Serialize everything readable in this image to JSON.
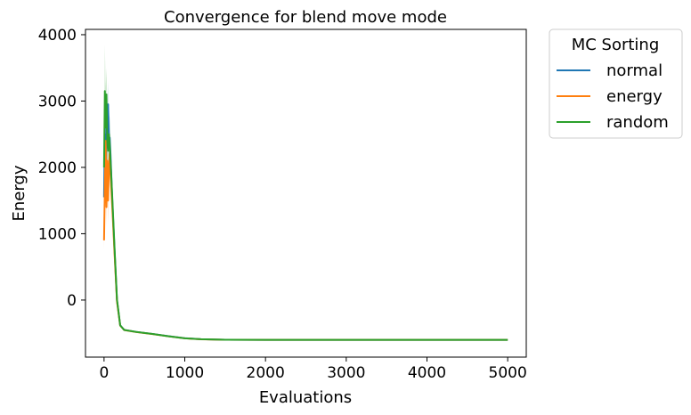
{
  "chart_data": {
    "type": "line",
    "title": "Convergence for blend move mode",
    "xlabel": "Evaluations",
    "ylabel": "Energy",
    "xlim": [
      -230,
      5230
    ],
    "ylim": [
      -860,
      4080
    ],
    "xticks": [
      0,
      1000,
      2000,
      3000,
      4000,
      5000
    ],
    "yticks": [
      0,
      1000,
      2000,
      3000,
      4000
    ],
    "grid": false,
    "legend": {
      "title": "MC Sorting",
      "placement": "outside-top-right"
    },
    "series": [
      {
        "name": "normal",
        "color": "#1f77b4",
        "x": [
          0,
          10,
          20,
          30,
          40,
          50,
          60,
          70,
          80,
          100,
          130,
          160,
          200,
          250,
          300,
          400,
          600,
          800,
          1000,
          1200,
          1500,
          2000,
          3000,
          4000,
          5000
        ],
        "y": [
          1550,
          2500,
          1900,
          2700,
          2300,
          2950,
          2400,
          2450,
          2200,
          1550,
          750,
          0,
          -380,
          -450,
          -460,
          -480,
          -510,
          -545,
          -575,
          -590,
          -598,
          -600,
          -600,
          -600,
          -600
        ],
        "band_upper": [
          1700,
          2900,
          2300,
          3100,
          2700,
          3300,
          2800,
          2750,
          2450,
          1800,
          900,
          60,
          -360,
          -440,
          -455,
          -475,
          -505,
          -540,
          -570,
          -585,
          -595,
          -598,
          -598,
          -598,
          -598
        ],
        "band_lower": [
          1400,
          2150,
          1550,
          2300,
          1900,
          2550,
          2000,
          2100,
          1900,
          1300,
          600,
          -60,
          -400,
          -460,
          -465,
          -485,
          -515,
          -550,
          -580,
          -595,
          -602,
          -602,
          -602,
          -602,
          -602
        ]
      },
      {
        "name": "energy",
        "color": "#ff7f0e",
        "x": [
          0,
          10,
          20,
          30,
          40,
          50,
          60,
          70,
          80,
          100,
          130,
          160,
          200,
          250,
          300,
          400,
          600,
          800,
          1000,
          1200,
          1500,
          2000,
          3000,
          4000,
          5000
        ],
        "y": [
          900,
          1700,
          2400,
          1400,
          2100,
          1500,
          2000,
          2200,
          1900,
          1450,
          700,
          -20,
          -385,
          -452,
          -462,
          -482,
          -512,
          -547,
          -577,
          -591,
          -598,
          -600,
          -600,
          -600,
          -600
        ],
        "band_upper": [
          1100,
          2100,
          2800,
          1750,
          2500,
          1900,
          2350,
          2550,
          2200,
          1700,
          850,
          40,
          -365,
          -442,
          -457,
          -477,
          -507,
          -542,
          -572,
          -586,
          -595,
          -598,
          -598,
          -598,
          -598
        ],
        "band_lower": [
          750,
          1350,
          2000,
          1100,
          1700,
          1150,
          1650,
          1850,
          1600,
          1200,
          550,
          -80,
          -405,
          -462,
          -467,
          -487,
          -517,
          -552,
          -582,
          -596,
          -602,
          -602,
          -602,
          -602,
          -602
        ]
      },
      {
        "name": "random",
        "color": "#2ca02c",
        "x": [
          0,
          10,
          20,
          30,
          40,
          50,
          60,
          70,
          80,
          100,
          130,
          160,
          200,
          250,
          300,
          400,
          600,
          800,
          1000,
          1200,
          1500,
          2000,
          3000,
          4000,
          5000
        ],
        "y": [
          2000,
          3150,
          2600,
          3100,
          2400,
          2250,
          2500,
          2350,
          2100,
          1600,
          780,
          10,
          -382,
          -451,
          -461,
          -481,
          -511,
          -546,
          -576,
          -590,
          -598,
          -600,
          -600,
          -600,
          -600
        ],
        "band_upper": [
          2400,
          3850,
          3200,
          3500,
          2900,
          2700,
          2900,
          2700,
          2400,
          1850,
          950,
          70,
          -362,
          -441,
          -456,
          -476,
          -506,
          -541,
          -571,
          -585,
          -595,
          -598,
          -598,
          -598,
          -598
        ],
        "band_lower": [
          1600,
          2500,
          2000,
          2700,
          1950,
          1800,
          2100,
          2000,
          1800,
          1350,
          620,
          -50,
          -402,
          -461,
          -466,
          -486,
          -516,
          -551,
          -581,
          -595,
          -602,
          -602,
          -602,
          -602,
          -602
        ]
      }
    ]
  }
}
